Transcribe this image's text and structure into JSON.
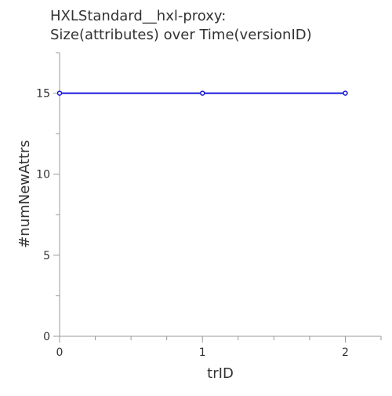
{
  "chart_data": {
    "type": "line",
    "title_lines": [
      "HXLStandard__hxl-proxy:",
      "Size(attributes) over Time(versionID)"
    ],
    "xlabel": "trID",
    "ylabel": "#numNewAttrs",
    "x": [
      0,
      1,
      2
    ],
    "series": [
      {
        "values": [
          15,
          15,
          15
        ]
      }
    ],
    "xlim": [
      0,
      2.25
    ],
    "ylim": [
      0,
      17.5
    ],
    "x_major_ticks": [
      0,
      1,
      2
    ],
    "x_tick_labels": [
      "0",
      "1",
      "2"
    ],
    "x_minor_ticks": [
      0.25,
      0.5,
      0.75,
      1.25,
      1.5,
      1.75,
      2.25
    ],
    "y_major_ticks": [
      0,
      5,
      10,
      15
    ],
    "y_tick_labels": [
      "0",
      "5",
      "10",
      "15"
    ],
    "y_minor_ticks": [
      2.5,
      7.5,
      12.5,
      17.5
    ],
    "grid": false,
    "colors": {
      "line": "#1a1adb",
      "axis": "#999999",
      "text": "#333333"
    }
  }
}
